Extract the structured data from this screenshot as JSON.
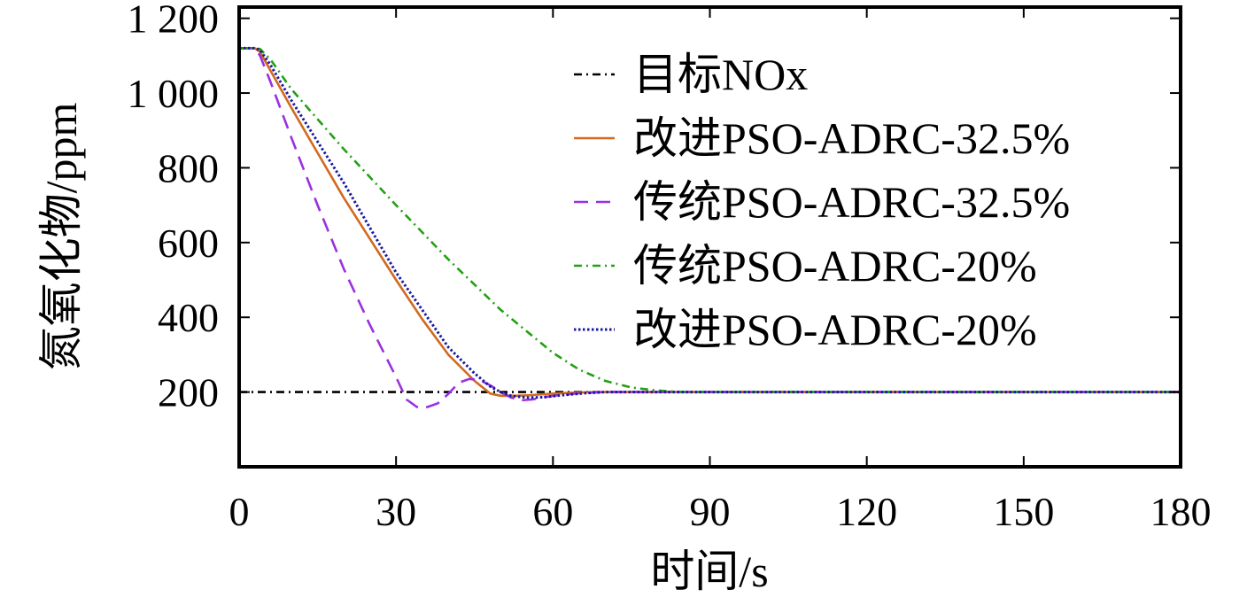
{
  "chart_data": {
    "type": "line",
    "title": "",
    "xlabel": "时间/s",
    "ylabel": "氮氧化物/ppm",
    "xlim": [
      0,
      180
    ],
    "ylim": [
      0,
      1230
    ],
    "x_ticks": [
      0,
      30,
      60,
      90,
      120,
      150,
      180
    ],
    "x_tick_labels": [
      "0",
      "30",
      "60",
      "90",
      "120",
      "150",
      "180"
    ],
    "y_ticks": [
      200,
      400,
      600,
      800,
      1000,
      1200
    ],
    "y_tick_labels": [
      "200",
      "400",
      "600",
      "800",
      "1 000",
      "1 200"
    ],
    "grid": false,
    "legend_position": "top-right",
    "series": [
      {
        "name": "目标NOx",
        "color": "#000000",
        "dash": "dashdot",
        "x": [
          0,
          180
        ],
        "y": [
          200,
          200
        ]
      },
      {
        "name": "改进PSO-ADRC-32.5%",
        "color": "#d2691e",
        "dash": "solid",
        "x": [
          0,
          3,
          4,
          6,
          10,
          15,
          20,
          25,
          30,
          35,
          40,
          45,
          48,
          50,
          53,
          56,
          60,
          65,
          70,
          80,
          90,
          180
        ],
        "y": [
          1120,
          1120,
          1110,
          1060,
          960,
          840,
          720,
          610,
          500,
          395,
          300,
          230,
          196,
          190,
          190,
          192,
          196,
          199,
          200,
          200,
          200,
          200
        ]
      },
      {
        "name": "传统PSO-ADRC-32.5%",
        "color": "#9b30e0",
        "dash": "dashed",
        "x": [
          0,
          3,
          4,
          6,
          10,
          15,
          20,
          25,
          30,
          32,
          34,
          36,
          38,
          40,
          42,
          44,
          46,
          48,
          50,
          52,
          54,
          56,
          60,
          65,
          70,
          80,
          180
        ],
        "y": [
          1120,
          1120,
          1100,
          1030,
          880,
          700,
          530,
          380,
          240,
          180,
          160,
          160,
          170,
          195,
          225,
          235,
          232,
          218,
          200,
          185,
          178,
          180,
          190,
          197,
          200,
          200,
          200
        ]
      },
      {
        "name": "传统PSO-ADRC-20%",
        "color": "#22a012",
        "dash": "dashdot",
        "x": [
          0,
          3,
          4,
          6,
          10,
          20,
          30,
          40,
          50,
          60,
          65,
          70,
          75,
          80,
          85,
          90,
          180
        ],
        "y": [
          1120,
          1120,
          1118,
          1090,
          1010,
          850,
          700,
          555,
          420,
          305,
          260,
          230,
          212,
          204,
          200,
          200,
          200
        ]
      },
      {
        "name": "改进PSO-ADRC-20%",
        "color": "#1a1aa0",
        "dash": "dotted",
        "x": [
          0,
          3,
          4,
          6,
          10,
          15,
          20,
          25,
          30,
          35,
          40,
          45,
          48,
          50,
          52,
          55,
          58,
          62,
          66,
          70,
          80,
          180
        ],
        "y": [
          1120,
          1120,
          1115,
          1075,
          980,
          870,
          760,
          640,
          520,
          420,
          320,
          250,
          215,
          200,
          190,
          185,
          186,
          192,
          197,
          200,
          200,
          200
        ]
      }
    ]
  }
}
